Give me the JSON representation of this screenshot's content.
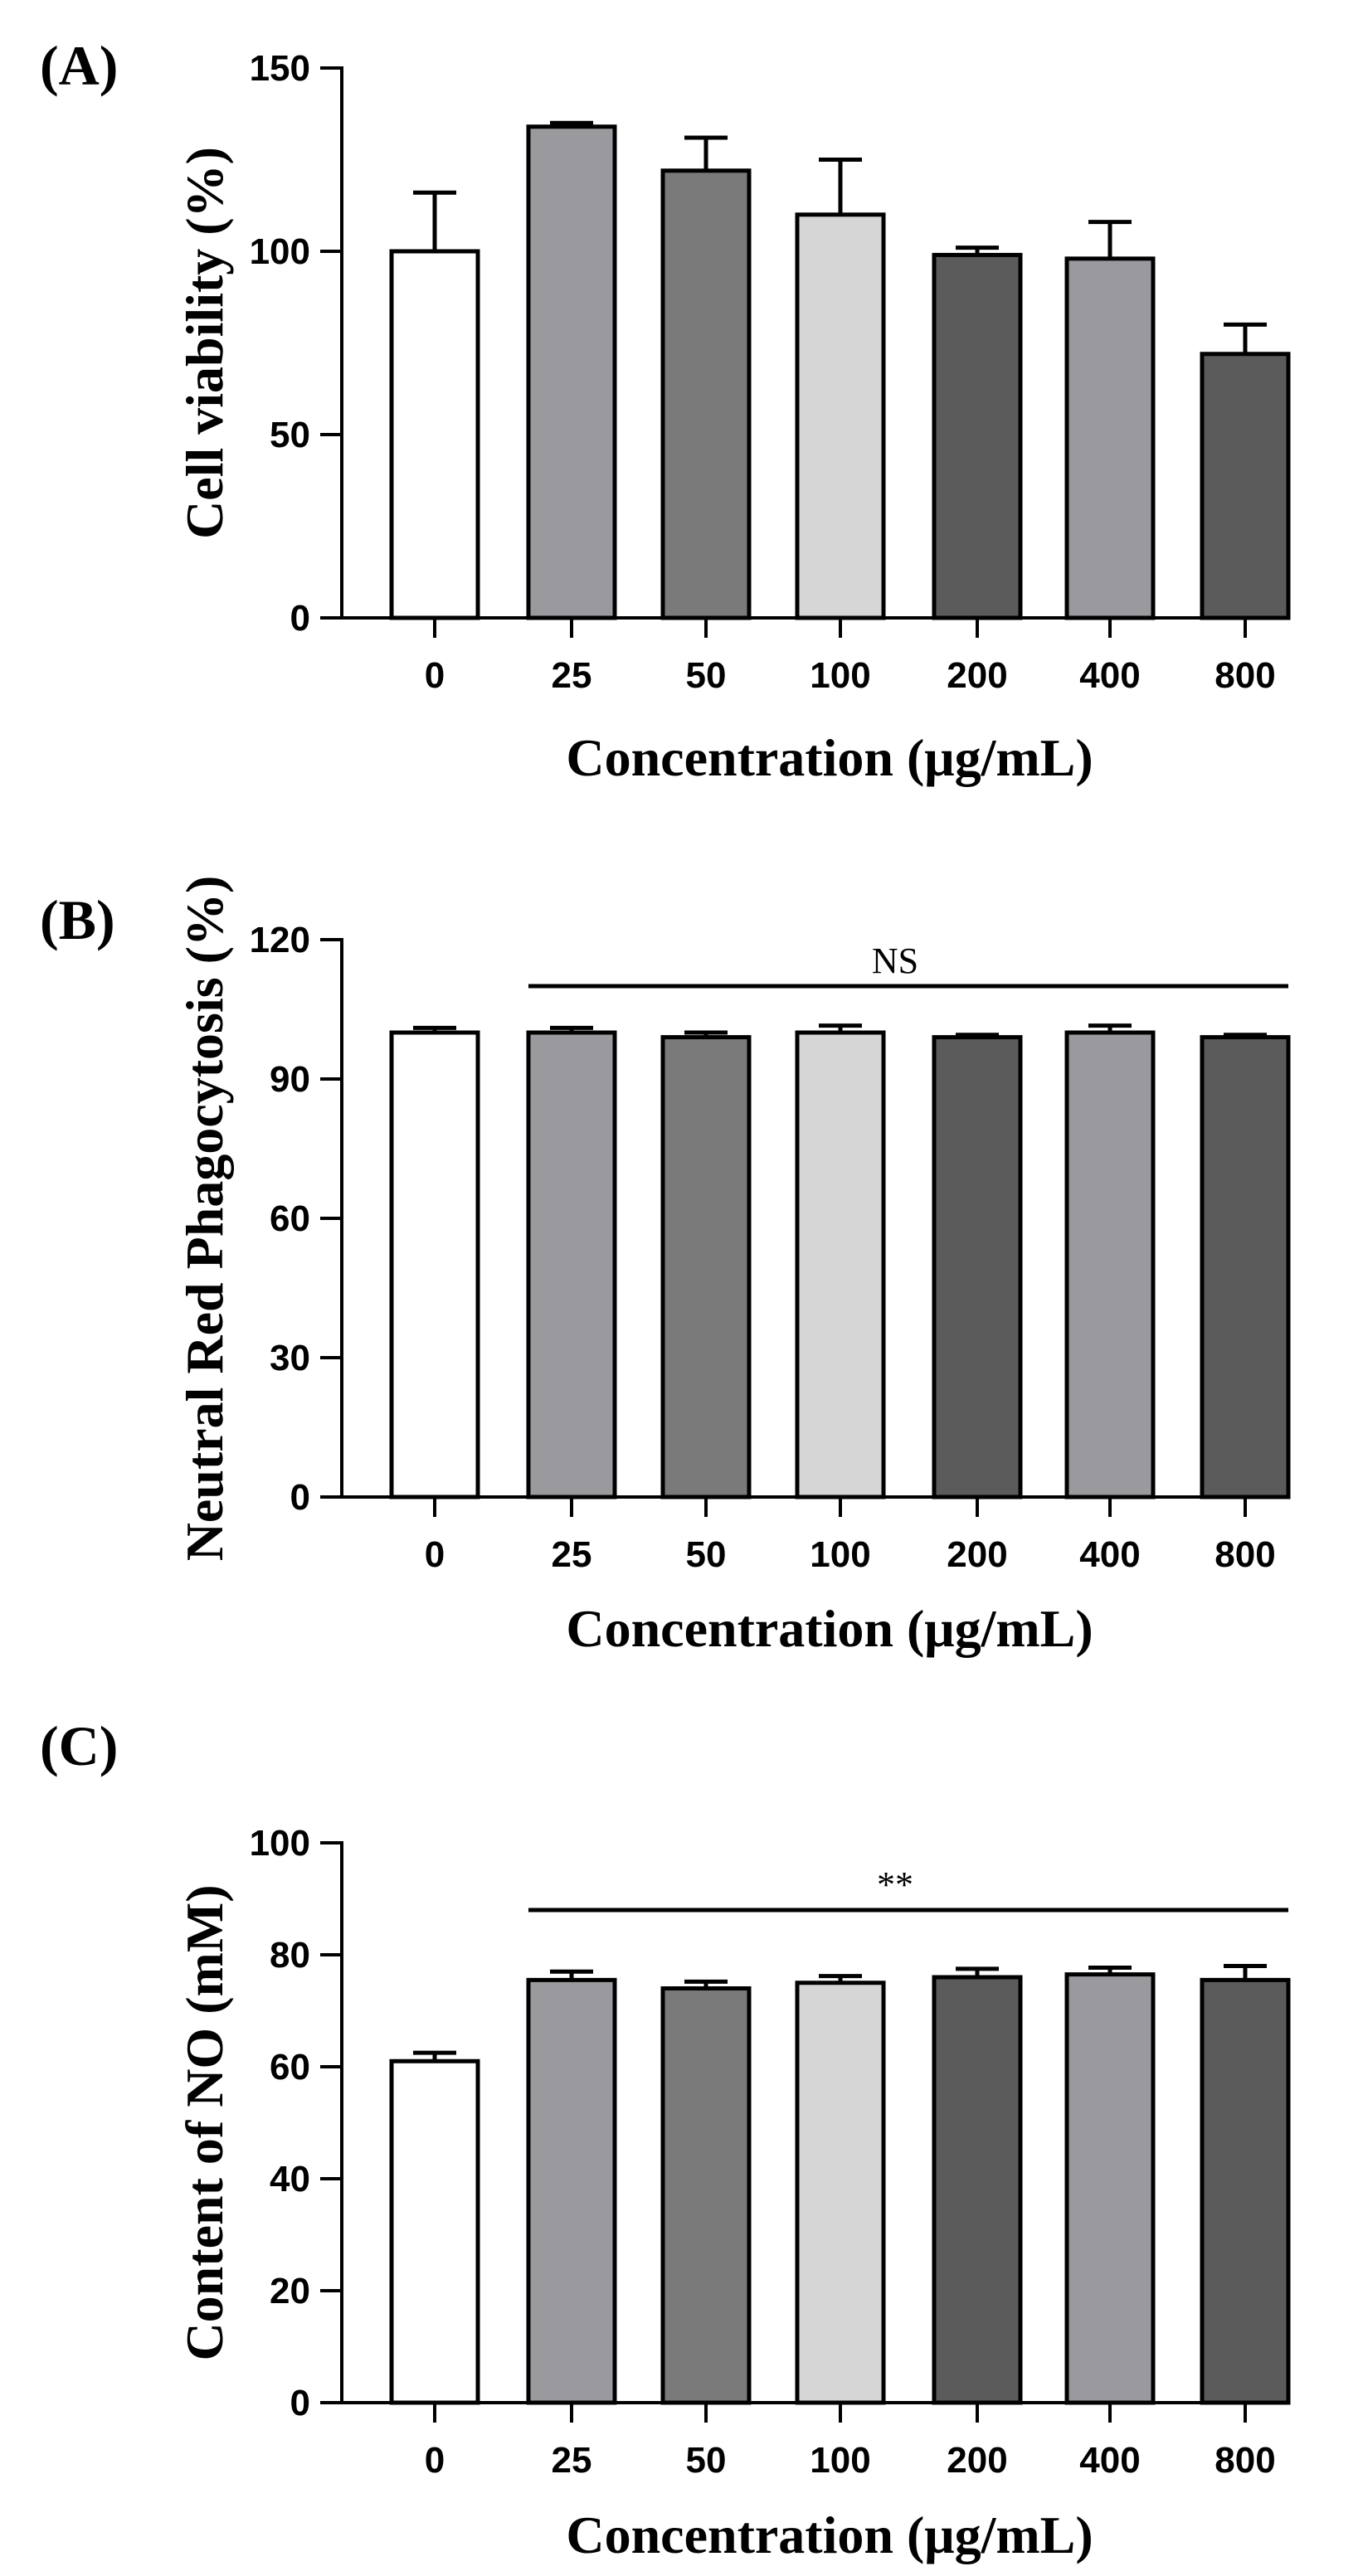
{
  "colors": {
    "white": "#ffffff",
    "mid_gray": "#9a9a9e",
    "dark_gray": "#7a7a7a",
    "light_gray": "#d6d6d6",
    "charcoal": "#5b5b5b"
  },
  "chart_data": [
    {
      "type": "bar",
      "panel_label": "(A)",
      "categories": [
        "0",
        "25",
        "50",
        "100",
        "200",
        "400",
        "800"
      ],
      "values": [
        100,
        134,
        122,
        110,
        99,
        98,
        72
      ],
      "errors": [
        16,
        1,
        9,
        15,
        2,
        10,
        8
      ],
      "bar_colors": [
        "#ffffff",
        "#9a9a9e",
        "#7a7a7a",
        "#d6d6d6",
        "#5b5b5b",
        "#9a9a9e",
        "#5b5b5b"
      ],
      "xlabel": "Concentration (μg/mL)",
      "ylabel": "Cell viability (%)",
      "ylim": [
        0,
        150
      ],
      "yticks": [
        "0",
        "50",
        "100",
        "150"
      ],
      "significance": null
    },
    {
      "type": "bar",
      "panel_label": "(B)",
      "categories": [
        "0",
        "25",
        "50",
        "100",
        "200",
        "400",
        "800"
      ],
      "values": [
        100,
        100,
        99,
        100,
        99,
        100,
        99
      ],
      "errors": [
        1,
        1,
        1,
        1.5,
        0.5,
        1.5,
        0.5
      ],
      "bar_colors": [
        "#ffffff",
        "#9a9a9e",
        "#7a7a7a",
        "#d6d6d6",
        "#5b5b5b",
        "#9a9a9e",
        "#5b5b5b"
      ],
      "xlabel": "Concentration (μg/mL)",
      "ylabel": "Neutral Red Phagocytosis (%)",
      "ylim": [
        0,
        120
      ],
      "yticks": [
        "0",
        "30",
        "60",
        "90",
        "120"
      ],
      "significance": {
        "label": "NS",
        "from_index": 1,
        "to_index": 6,
        "level": 110
      }
    },
    {
      "type": "bar",
      "panel_label": "(C)",
      "categories": [
        "0",
        "25",
        "50",
        "100",
        "200",
        "400",
        "800"
      ],
      "values": [
        61,
        75.5,
        74,
        75,
        76,
        76.5,
        75.5
      ],
      "errors": [
        1.5,
        1.5,
        1.2,
        1.2,
        1.5,
        1.2,
        2.5
      ],
      "bar_colors": [
        "#ffffff",
        "#9a9a9e",
        "#7a7a7a",
        "#d6d6d6",
        "#5b5b5b",
        "#9a9a9e",
        "#5b5b5b"
      ],
      "xlabel": "Concentration (μg/mL)",
      "ylabel": "Content of NO (mM)",
      "ylim": [
        0,
        100
      ],
      "yticks": [
        "0",
        "20",
        "40",
        "60",
        "80",
        "100"
      ],
      "significance": {
        "label": "**",
        "from_index": 1,
        "to_index": 6,
        "level": 88
      }
    }
  ]
}
